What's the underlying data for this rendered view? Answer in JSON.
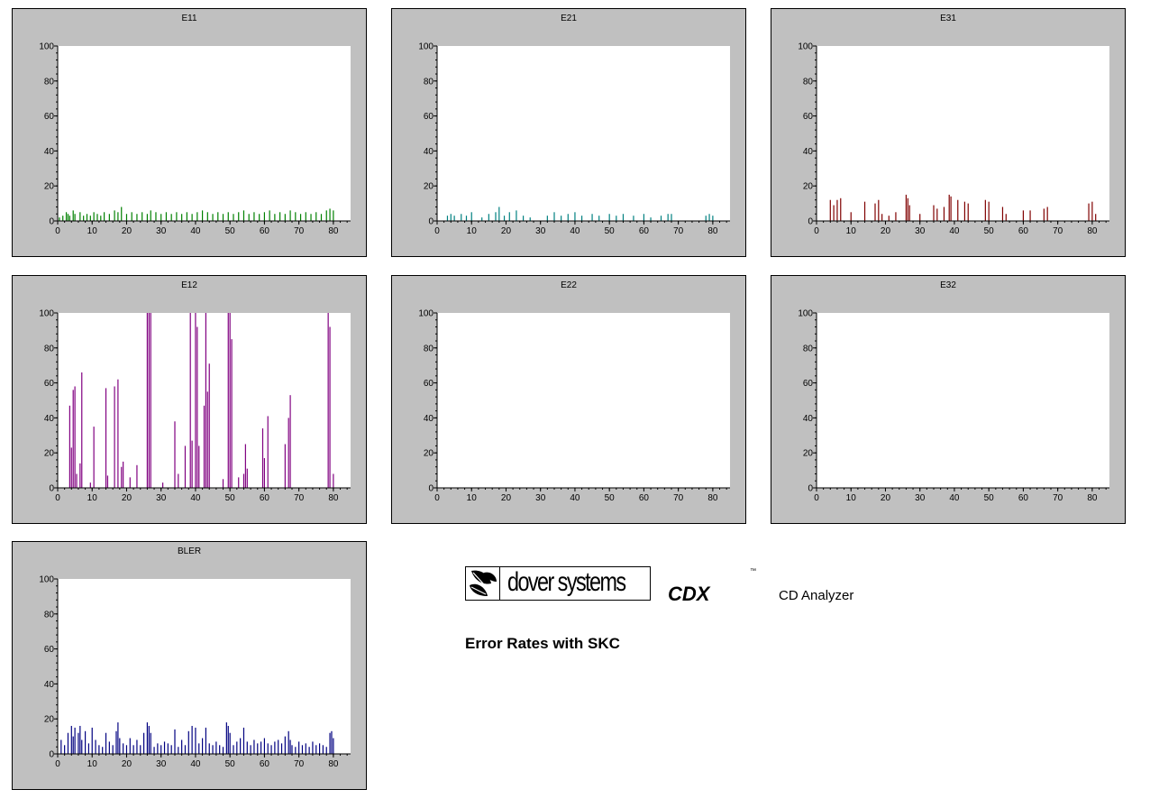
{
  "branding": {
    "company": "dover systems",
    "product_code": "CDX",
    "trademark": "™",
    "product_name": "CD Analyzer",
    "subtitle": "Error Rates with SKC"
  },
  "chart_data": [
    {
      "type": "bar",
      "title": "E11",
      "color": "#008000",
      "xlim": [
        0,
        85
      ],
      "ylim": [
        0,
        100
      ],
      "xticks": [
        0,
        10,
        20,
        30,
        40,
        50,
        60,
        70,
        80
      ],
      "yticks": [
        0,
        20,
        40,
        60,
        80,
        100
      ],
      "x": [
        0.5,
        1.5,
        2.5,
        3,
        3.5,
        4.5,
        5,
        6.5,
        7.5,
        8.5,
        9.5,
        10.5,
        11.5,
        12.5,
        13.5,
        15,
        16.5,
        17.5,
        18.5,
        20,
        21.5,
        23,
        24.5,
        26,
        27,
        28.5,
        30,
        31.5,
        33,
        34.5,
        36,
        37.5,
        39,
        40.5,
        42,
        43.5,
        45,
        46.5,
        48,
        49.5,
        51,
        52.5,
        54,
        55.5,
        57,
        58.5,
        60,
        61.5,
        63,
        64.5,
        66,
        67.5,
        69,
        70.5,
        72,
        73.5,
        75,
        76.5,
        78,
        79,
        80
      ],
      "values": [
        2,
        3,
        5,
        4,
        3,
        6,
        4,
        5,
        3,
        4,
        3,
        5,
        4,
        3,
        5,
        4,
        6,
        5,
        8,
        4,
        5,
        4,
        5,
        4,
        6,
        5,
        4,
        5,
        4,
        5,
        4,
        5,
        4,
        5,
        6,
        5,
        4,
        5,
        4,
        5,
        4,
        5,
        6,
        4,
        5,
        4,
        5,
        6,
        4,
        5,
        4,
        6,
        5,
        4,
        5,
        4,
        5,
        4,
        6,
        7,
        6
      ]
    },
    {
      "type": "bar",
      "title": "E21",
      "color": "#008080",
      "xlim": [
        0,
        85
      ],
      "ylim": [
        0,
        100
      ],
      "xticks": [
        0,
        10,
        20,
        30,
        40,
        50,
        60,
        70,
        80
      ],
      "yticks": [
        0,
        20,
        40,
        60,
        80,
        100
      ],
      "x": [
        3,
        4,
        5,
        7,
        8.5,
        10,
        13,
        15,
        17,
        18,
        19.5,
        21,
        23,
        25,
        27,
        32,
        34,
        36,
        38,
        40,
        42,
        45,
        47,
        50,
        52,
        54,
        57,
        60,
        62,
        65,
        67,
        68,
        78,
        79,
        80
      ],
      "values": [
        3,
        4,
        3,
        4,
        3,
        5,
        2,
        4,
        5,
        8,
        3,
        5,
        6,
        3,
        2,
        3,
        5,
        3,
        4,
        5,
        3,
        4,
        3,
        4,
        3,
        4,
        3,
        4,
        2,
        3,
        4,
        4,
        3,
        4,
        3
      ]
    },
    {
      "type": "bar",
      "title": "E31",
      "color": "#800000",
      "xlim": [
        0,
        85
      ],
      "ylim": [
        0,
        100
      ],
      "xticks": [
        0,
        10,
        20,
        30,
        40,
        50,
        60,
        70,
        80
      ],
      "yticks": [
        0,
        20,
        40,
        60,
        80,
        100
      ],
      "x": [
        4,
        5,
        6,
        7,
        10,
        14,
        17,
        18,
        19,
        21,
        23,
        26,
        26.5,
        27,
        30,
        34,
        35,
        37,
        38.5,
        39,
        41,
        43,
        44,
        49,
        50,
        54,
        55,
        60,
        62,
        66,
        67,
        79,
        80,
        81
      ],
      "values": [
        12,
        9,
        12,
        13,
        5,
        11,
        10,
        12,
        4,
        3,
        5,
        15,
        13,
        9,
        4,
        9,
        7,
        8,
        15,
        14,
        12,
        11,
        10,
        12,
        11,
        8,
        4,
        6,
        6,
        7,
        8,
        10,
        11,
        4
      ]
    },
    {
      "type": "bar",
      "title": "E12",
      "color": "#800080",
      "xlim": [
        0,
        85
      ],
      "ylim": [
        0,
        100
      ],
      "xticks": [
        0,
        10,
        20,
        30,
        40,
        50,
        60,
        70,
        80
      ],
      "yticks": [
        0,
        20,
        40,
        60,
        80,
        100
      ],
      "x": [
        3.5,
        4,
        4.5,
        5,
        5.5,
        6.5,
        7,
        9.5,
        10.5,
        14,
        14.5,
        16.5,
        17.5,
        18.5,
        19,
        21,
        23,
        26,
        26.5,
        27,
        30.5,
        34,
        35,
        37,
        38.5,
        39,
        40,
        40.5,
        41,
        42.5,
        43,
        43.5,
        44,
        48,
        49.5,
        50,
        50.5,
        52.5,
        54,
        54.5,
        55,
        59.5,
        60,
        61,
        66,
        67,
        67.5,
        78.5,
        79,
        80
      ],
      "values": [
        47,
        23,
        56,
        58,
        8,
        14,
        66,
        3,
        35,
        57,
        7,
        58,
        62,
        12,
        15,
        6,
        13,
        100,
        100,
        100,
        3,
        38,
        8,
        24,
        100,
        27,
        100,
        92,
        24,
        47,
        100,
        55,
        71,
        5,
        100,
        100,
        85,
        6,
        8,
        25,
        11,
        34,
        17,
        41,
        25,
        40,
        53,
        100,
        92,
        8
      ]
    },
    {
      "type": "bar",
      "title": "E22",
      "color": "#000080",
      "xlim": [
        0,
        85
      ],
      "ylim": [
        0,
        100
      ],
      "xticks": [
        0,
        10,
        20,
        30,
        40,
        50,
        60,
        70,
        80
      ],
      "yticks": [
        0,
        20,
        40,
        60,
        80,
        100
      ],
      "x": [],
      "values": []
    },
    {
      "type": "bar",
      "title": "E32",
      "color": "#000080",
      "xlim": [
        0,
        85
      ],
      "ylim": [
        0,
        100
      ],
      "xticks": [
        0,
        10,
        20,
        30,
        40,
        50,
        60,
        70,
        80
      ],
      "yticks": [
        0,
        20,
        40,
        60,
        80,
        100
      ],
      "x": [],
      "values": []
    },
    {
      "type": "bar",
      "title": "BLER",
      "color": "#000080",
      "xlim": [
        0,
        85
      ],
      "ylim": [
        0,
        100
      ],
      "xticks": [
        0,
        10,
        20,
        30,
        40,
        50,
        60,
        70,
        80
      ],
      "yticks": [
        0,
        20,
        40,
        60,
        80,
        100
      ],
      "x": [
        1,
        2,
        3,
        4,
        4.5,
        5,
        6,
        6.5,
        7,
        8,
        9,
        10,
        11,
        12,
        13,
        14,
        15,
        16,
        17,
        17.5,
        18,
        19,
        20,
        21,
        22,
        23,
        24,
        25,
        26,
        26.5,
        27,
        28,
        29,
        30,
        31,
        32,
        33,
        34,
        35,
        36,
        37,
        38,
        39,
        40,
        41,
        42,
        43,
        44,
        45,
        46,
        47,
        48,
        49,
        49.5,
        50,
        51,
        52,
        53,
        54,
        55,
        56,
        57,
        58,
        59,
        60,
        61,
        62,
        63,
        64,
        65,
        66,
        67,
        67.5,
        68,
        69,
        70,
        71,
        72,
        73,
        74,
        75,
        76,
        77,
        78,
        79,
        79.5,
        80
      ],
      "values": [
        8,
        5,
        12,
        16,
        10,
        15,
        12,
        16,
        8,
        13,
        6,
        15,
        8,
        5,
        4,
        12,
        7,
        5,
        13,
        18,
        9,
        6,
        5,
        9,
        5,
        8,
        5,
        12,
        18,
        16,
        12,
        4,
        6,
        5,
        7,
        6,
        5,
        14,
        4,
        8,
        5,
        13,
        16,
        15,
        6,
        9,
        15,
        6,
        5,
        7,
        5,
        4,
        18,
        16,
        12,
        5,
        7,
        9,
        15,
        7,
        5,
        8,
        6,
        7,
        9,
        6,
        5,
        7,
        8,
        6,
        10,
        13,
        8,
        5,
        4,
        7,
        5,
        6,
        4,
        7,
        5,
        6,
        5,
        4,
        12,
        13,
        9
      ]
    }
  ]
}
